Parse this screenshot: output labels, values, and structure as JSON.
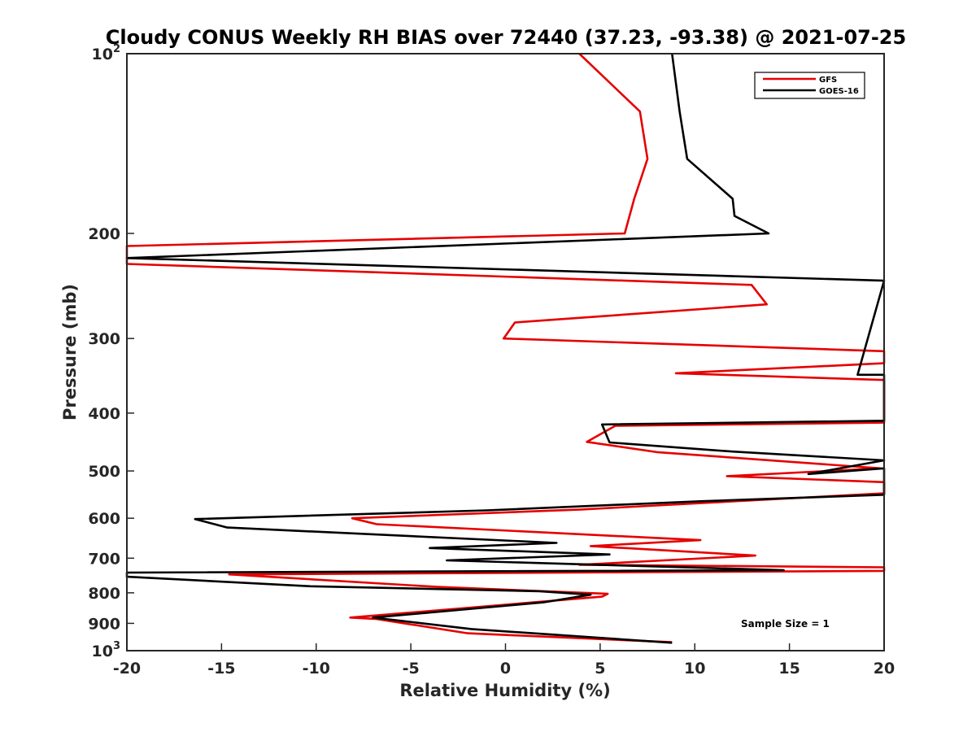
{
  "chart_data": {
    "type": "line",
    "title": "Cloudy CONUS Weekly RH BIAS over 72440 (37.23, -93.38) @ 2021-07-25",
    "xlabel": "Relative Humidity (%)",
    "ylabel": "Pressure (mb)",
    "xlim": [
      -20,
      20
    ],
    "ylim": [
      100,
      1000
    ],
    "y_scale": "log",
    "y_reversed": true,
    "grid": false,
    "legend_position": "top-right",
    "x_ticks": [
      -20,
      -15,
      -10,
      -5,
      0,
      5,
      10,
      15,
      20
    ],
    "y_ticks": [
      {
        "value": 100,
        "base": "10",
        "exp": "2"
      },
      {
        "value": 200,
        "label": "200"
      },
      {
        "value": 300,
        "label": "300"
      },
      {
        "value": 400,
        "label": "400"
      },
      {
        "value": 500,
        "label": "500"
      },
      {
        "value": 600,
        "label": "600"
      },
      {
        "value": 700,
        "label": "700"
      },
      {
        "value": 800,
        "label": "800"
      },
      {
        "value": 900,
        "label": "900"
      },
      {
        "value": 1000,
        "base": "10",
        "exp": "3"
      }
    ],
    "annotation": "Sample Size = 1",
    "series": [
      {
        "name": "GFS",
        "color": "#e60000",
        "points": [
          [
            3.9,
            100
          ],
          [
            7.1,
            125
          ],
          [
            7.5,
            150
          ],
          [
            6.8,
            175
          ],
          [
            6.3,
            200
          ],
          [
            -20,
            210
          ],
          [
            -20,
            225
          ],
          [
            13.0,
            244
          ],
          [
            13.8,
            263
          ],
          [
            0.5,
            282
          ],
          [
            -0.1,
            300
          ],
          [
            20,
            315
          ],
          [
            20,
            330
          ],
          [
            9.0,
            343
          ],
          [
            20,
            352
          ],
          [
            20,
            415
          ],
          [
            5.8,
            420
          ],
          [
            4.3,
            447
          ],
          [
            8.0,
            465
          ],
          [
            19.8,
            495
          ],
          [
            11.7,
            510
          ],
          [
            20,
            522
          ],
          [
            20,
            545
          ],
          [
            4.0,
            580
          ],
          [
            -8.1,
            600
          ],
          [
            -6.8,
            614
          ],
          [
            10.3,
            653
          ],
          [
            4.5,
            668
          ],
          [
            13.2,
            693
          ],
          [
            3.9,
            718
          ],
          [
            20,
            725
          ],
          [
            20,
            735
          ],
          [
            -14.6,
            745
          ],
          [
            -3.6,
            782
          ],
          [
            5.4,
            803
          ],
          [
            5.1,
            812
          ],
          [
            -8.2,
            880
          ],
          [
            -6.8,
            885
          ],
          [
            -2.0,
            935
          ],
          [
            8.8,
            968
          ]
        ]
      },
      {
        "name": "GOES-16",
        "color": "#000000",
        "points": [
          [
            8.8,
            100
          ],
          [
            9.2,
            125
          ],
          [
            9.6,
            150
          ],
          [
            12.0,
            175
          ],
          [
            12.1,
            187
          ],
          [
            13.9,
            200
          ],
          [
            -20,
            220
          ],
          [
            20,
            240
          ],
          [
            18.6,
            345
          ],
          [
            20,
            345
          ],
          [
            20,
            347
          ],
          [
            20,
            412
          ],
          [
            5.1,
            418
          ],
          [
            5.5,
            448
          ],
          [
            12.0,
            464
          ],
          [
            20,
            480
          ],
          [
            16.0,
            506
          ],
          [
            20,
            495
          ],
          [
            20,
            520
          ],
          [
            20,
            548
          ],
          [
            10.3,
            562
          ],
          [
            -1.0,
            582
          ],
          [
            -16.4,
            602
          ],
          [
            -14.7,
            622
          ],
          [
            2.7,
            660
          ],
          [
            -4.0,
            673
          ],
          [
            5.5,
            690
          ],
          [
            -3.1,
            706
          ],
          [
            14.7,
            733
          ],
          [
            -20,
            740
          ],
          [
            -20,
            752
          ],
          [
            -10.3,
            780
          ],
          [
            1.8,
            795
          ],
          [
            4.5,
            806
          ],
          [
            2.0,
            830
          ],
          [
            -7.0,
            880
          ],
          [
            -1.8,
            920
          ],
          [
            8.8,
            970
          ]
        ]
      }
    ]
  }
}
